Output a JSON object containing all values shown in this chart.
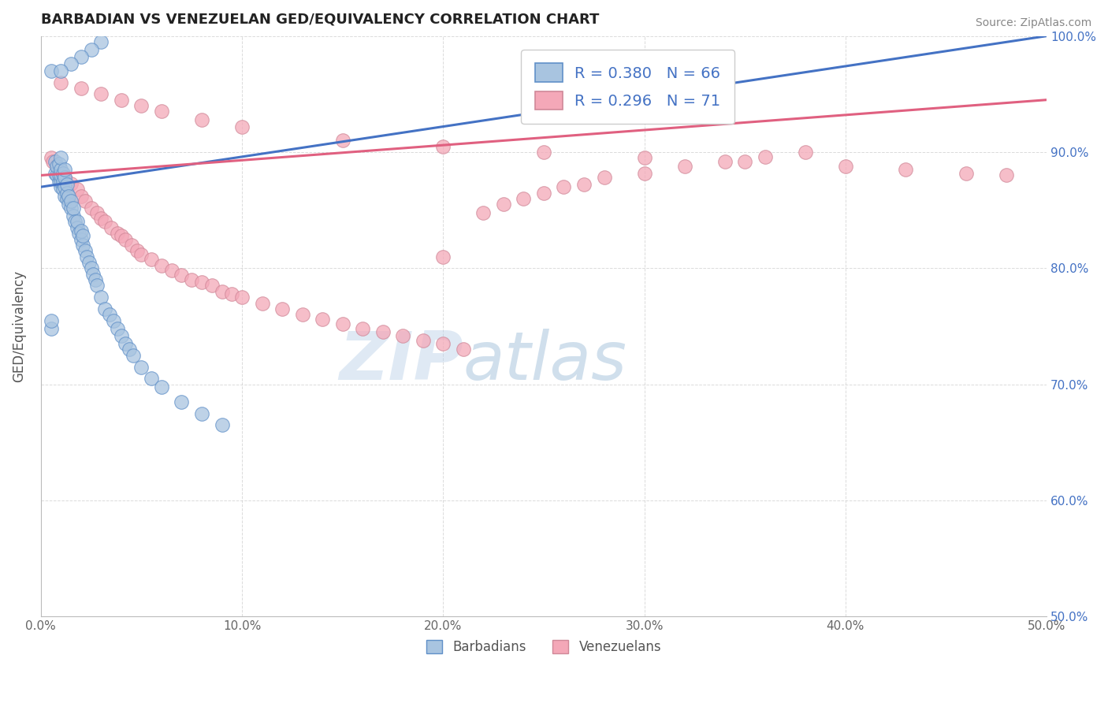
{
  "title": "BARBADIAN VS VENEZUELAN GED/EQUIVALENCY CORRELATION CHART",
  "source": "Source: ZipAtlas.com",
  "ylabel": "GED/Equivalency",
  "xlim": [
    0.0,
    0.5
  ],
  "ylim": [
    0.5,
    1.0
  ],
  "xticks": [
    0.0,
    0.1,
    0.2,
    0.3,
    0.4,
    0.5
  ],
  "xtick_labels": [
    "0.0%",
    "10.0%",
    "20.0%",
    "30.0%",
    "40.0%",
    "50.0%"
  ],
  "yticks": [
    0.5,
    0.6,
    0.7,
    0.8,
    0.9,
    1.0
  ],
  "ytick_labels": [
    "50.0%",
    "60.0%",
    "70.0%",
    "80.0%",
    "90.0%",
    "100.0%"
  ],
  "barbadian_color": "#a8c4e0",
  "venezuelan_color": "#f4a8b8",
  "barbadian_line_color": "#4472c4",
  "venezuelan_line_color": "#e06080",
  "R_barbadian": 0.38,
  "N_barbadian": 66,
  "R_venezuelan": 0.296,
  "N_venezuelan": 71,
  "legend_labels": [
    "Barbadians",
    "Venezuelans"
  ],
  "watermark": "ZIPatlas",
  "background_color": "#ffffff",
  "grid_color": "#cccccc",
  "barbadian_x": [
    0.005,
    0.005,
    0.007,
    0.007,
    0.008,
    0.008,
    0.009,
    0.009,
    0.009,
    0.01,
    0.01,
    0.01,
    0.01,
    0.01,
    0.011,
    0.011,
    0.011,
    0.012,
    0.012,
    0.012,
    0.012,
    0.013,
    0.013,
    0.013,
    0.014,
    0.014,
    0.015,
    0.015,
    0.016,
    0.016,
    0.017,
    0.018,
    0.018,
    0.019,
    0.02,
    0.02,
    0.021,
    0.021,
    0.022,
    0.023,
    0.024,
    0.025,
    0.026,
    0.027,
    0.028,
    0.03,
    0.032,
    0.034,
    0.036,
    0.038,
    0.04,
    0.042,
    0.044,
    0.046,
    0.05,
    0.055,
    0.06,
    0.07,
    0.08,
    0.09,
    0.005,
    0.03,
    0.025,
    0.02,
    0.015,
    0.01
  ],
  "barbadian_y": [
    0.748,
    0.755,
    0.882,
    0.892,
    0.88,
    0.888,
    0.875,
    0.88,
    0.89,
    0.87,
    0.875,
    0.88,
    0.885,
    0.895,
    0.868,
    0.875,
    0.882,
    0.862,
    0.87,
    0.878,
    0.885,
    0.86,
    0.865,
    0.872,
    0.855,
    0.862,
    0.852,
    0.858,
    0.845,
    0.852,
    0.84,
    0.835,
    0.84,
    0.83,
    0.825,
    0.832,
    0.82,
    0.828,
    0.815,
    0.81,
    0.805,
    0.8,
    0.795,
    0.79,
    0.785,
    0.775,
    0.765,
    0.76,
    0.755,
    0.748,
    0.742,
    0.735,
    0.73,
    0.725,
    0.715,
    0.705,
    0.698,
    0.685,
    0.675,
    0.665,
    0.97,
    0.995,
    0.988,
    0.982,
    0.976,
    0.97
  ],
  "venezuelan_x": [
    0.005,
    0.006,
    0.008,
    0.01,
    0.012,
    0.015,
    0.018,
    0.02,
    0.022,
    0.025,
    0.028,
    0.03,
    0.032,
    0.035,
    0.038,
    0.04,
    0.042,
    0.045,
    0.048,
    0.05,
    0.055,
    0.06,
    0.065,
    0.07,
    0.075,
    0.08,
    0.085,
    0.09,
    0.095,
    0.1,
    0.11,
    0.12,
    0.13,
    0.14,
    0.15,
    0.16,
    0.17,
    0.18,
    0.19,
    0.2,
    0.21,
    0.22,
    0.23,
    0.24,
    0.25,
    0.26,
    0.27,
    0.28,
    0.3,
    0.32,
    0.34,
    0.36,
    0.38,
    0.01,
    0.02,
    0.03,
    0.04,
    0.05,
    0.06,
    0.08,
    0.1,
    0.15,
    0.2,
    0.25,
    0.3,
    0.35,
    0.4,
    0.43,
    0.46,
    0.48,
    0.2
  ],
  "venezuelan_y": [
    0.895,
    0.892,
    0.888,
    0.882,
    0.878,
    0.873,
    0.868,
    0.862,
    0.858,
    0.852,
    0.848,
    0.843,
    0.84,
    0.835,
    0.83,
    0.828,
    0.825,
    0.82,
    0.815,
    0.812,
    0.808,
    0.802,
    0.798,
    0.794,
    0.79,
    0.788,
    0.785,
    0.78,
    0.778,
    0.775,
    0.77,
    0.765,
    0.76,
    0.756,
    0.752,
    0.748,
    0.745,
    0.742,
    0.738,
    0.735,
    0.73,
    0.848,
    0.855,
    0.86,
    0.865,
    0.87,
    0.872,
    0.878,
    0.882,
    0.888,
    0.892,
    0.896,
    0.9,
    0.96,
    0.955,
    0.95,
    0.945,
    0.94,
    0.935,
    0.928,
    0.922,
    0.91,
    0.905,
    0.9,
    0.895,
    0.892,
    0.888,
    0.885,
    0.882,
    0.88,
    0.81
  ],
  "barb_trendline": [
    0.0,
    0.5
  ],
  "barb_trend_y": [
    0.87,
    1.0
  ],
  "vene_trendline": [
    0.0,
    0.5
  ],
  "vene_trend_y": [
    0.88,
    0.945
  ]
}
